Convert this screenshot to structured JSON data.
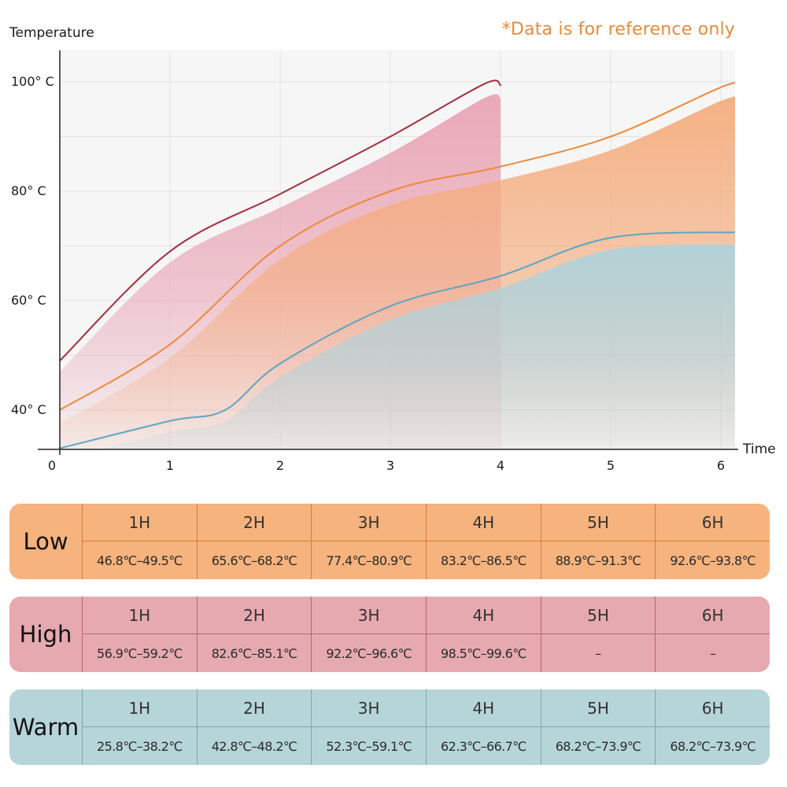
{
  "chart_data": {
    "type": "area",
    "ylabel": "Temperature",
    "xlabel": "Time",
    "note": "*Data is for reference only",
    "x_ticks": [
      0,
      1,
      2,
      3,
      4,
      5,
      6
    ],
    "x_range": [
      0,
      6.2
    ],
    "y_range": [
      33,
      106
    ],
    "y_ticks": [
      {
        "value": 40,
        "label": "40° C"
      },
      {
        "value": 60,
        "label": "60° C"
      },
      {
        "value": 80,
        "label": "80° C"
      },
      {
        "value": 100,
        "label": "100° C"
      }
    ],
    "grid": true,
    "series": [
      {
        "color": "#a3303e",
        "band_color": "#e9a4b4",
        "x": [
          0,
          1,
          2,
          3,
          3.85,
          4
        ],
        "upper": [
          49,
          69,
          79.5,
          90,
          99.6,
          99.4
        ],
        "lower": [
          47,
          67,
          77,
          87,
          97,
          97
        ]
      },
      {
        "color": "#ee8a3a",
        "band_color": "#f5ad7e",
        "x": [
          0,
          1,
          2,
          3,
          4,
          5,
          6,
          6.2
        ],
        "upper": [
          40,
          52,
          70,
          80,
          84.5,
          90,
          99,
          99.6
        ],
        "lower": [
          37.5,
          49.5,
          67.5,
          77.5,
          82,
          87.5,
          96.5,
          97.2
        ]
      },
      {
        "color": "#5ea6c1",
        "band_color": "#afd2db",
        "x": [
          0,
          1,
          1.5,
          2,
          3,
          4,
          5,
          6.2
        ],
        "upper": [
          33,
          38,
          40,
          48.5,
          59,
          64.5,
          71.5,
          72.5
        ],
        "lower": [
          31,
          36,
          38,
          46,
          56.5,
          62.3,
          69.3,
          70.3
        ]
      }
    ]
  },
  "tables": [
    {
      "name": "Low",
      "headers": [
        "1H",
        "2H",
        "3H",
        "4H",
        "5H",
        "6H"
      ],
      "ranges": [
        "46.8℃–49.5℃",
        "65.6℃–68.2℃",
        "77.4℃–80.9℃",
        "83.2℃–86.5℃",
        "88.9℃–91.3℃",
        "92.6℃–93.8℃"
      ]
    },
    {
      "name": "High",
      "headers": [
        "1H",
        "2H",
        "3H",
        "4H",
        "5H",
        "6H"
      ],
      "ranges": [
        "56.9℃–59.2℃",
        "82.6℃–85.1℃",
        "92.2℃–96.6℃",
        "98.5℃–99.6℃",
        "–",
        "–"
      ]
    },
    {
      "name": "Warm",
      "headers": [
        "1H",
        "2H",
        "3H",
        "4H",
        "5H",
        "6H"
      ],
      "ranges": [
        "25.8℃–38.2℃",
        "42.8℃–48.2℃",
        "52.3℃–59.1℃",
        "62.3℃–66.7℃",
        "68.2℃–73.9℃",
        "68.2℃–73.9℃"
      ]
    }
  ]
}
